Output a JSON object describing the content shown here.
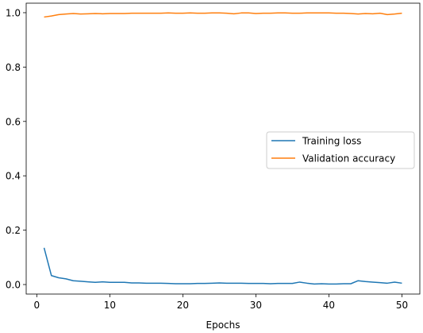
{
  "chart_data": {
    "type": "line",
    "title": "",
    "xlabel": "Epochs",
    "ylabel": "",
    "xlim": [
      -1.45,
      52.45
    ],
    "ylim": [
      -0.035,
      1.035
    ],
    "xticks": [
      0,
      10,
      20,
      30,
      40,
      50
    ],
    "xtick_labels": [
      "0",
      "10",
      "20",
      "30",
      "40",
      "50"
    ],
    "yticks": [
      0.0,
      0.2,
      0.4,
      0.6,
      0.8,
      1.0
    ],
    "ytick_labels": [
      "0.0",
      "0.2",
      "0.4",
      "0.6",
      "0.8",
      "1.0"
    ],
    "grid": false,
    "legend_position": "center-right",
    "x": [
      1,
      2,
      3,
      4,
      5,
      6,
      7,
      8,
      9,
      10,
      11,
      12,
      13,
      14,
      15,
      16,
      17,
      18,
      19,
      20,
      21,
      22,
      23,
      24,
      25,
      26,
      27,
      28,
      29,
      30,
      31,
      32,
      33,
      34,
      35,
      36,
      37,
      38,
      39,
      40,
      41,
      42,
      43,
      44,
      45,
      46,
      47,
      48,
      49,
      50
    ],
    "series": [
      {
        "name": "Training loss",
        "color": "#1f77b4",
        "values": [
          0.135,
          0.033,
          0.025,
          0.021,
          0.014,
          0.012,
          0.01,
          0.008,
          0.01,
          0.008,
          0.008,
          0.008,
          0.006,
          0.006,
          0.005,
          0.005,
          0.005,
          0.004,
          0.003,
          0.003,
          0.003,
          0.004,
          0.004,
          0.005,
          0.006,
          0.005,
          0.005,
          0.005,
          0.004,
          0.004,
          0.004,
          0.003,
          0.004,
          0.004,
          0.004,
          0.009,
          0.005,
          0.002,
          0.003,
          0.002,
          0.002,
          0.003,
          0.003,
          0.014,
          0.011,
          0.009,
          0.007,
          0.005,
          0.009,
          0.005
        ]
      },
      {
        "name": "Validation accuracy",
        "color": "#ff7f0e",
        "values": [
          0.984,
          0.988,
          0.993,
          0.995,
          0.997,
          0.995,
          0.996,
          0.997,
          0.996,
          0.997,
          0.997,
          0.997,
          0.998,
          0.998,
          0.998,
          0.998,
          0.998,
          0.999,
          0.998,
          0.998,
          0.999,
          0.998,
          0.998,
          0.999,
          0.999,
          0.998,
          0.996,
          0.999,
          0.999,
          0.997,
          0.998,
          0.998,
          0.999,
          0.999,
          0.998,
          0.998,
          0.999,
          0.999,
          0.999,
          0.999,
          0.998,
          0.998,
          0.997,
          0.995,
          0.997,
          0.996,
          0.998,
          0.993,
          0.995,
          0.998
        ]
      }
    ]
  }
}
